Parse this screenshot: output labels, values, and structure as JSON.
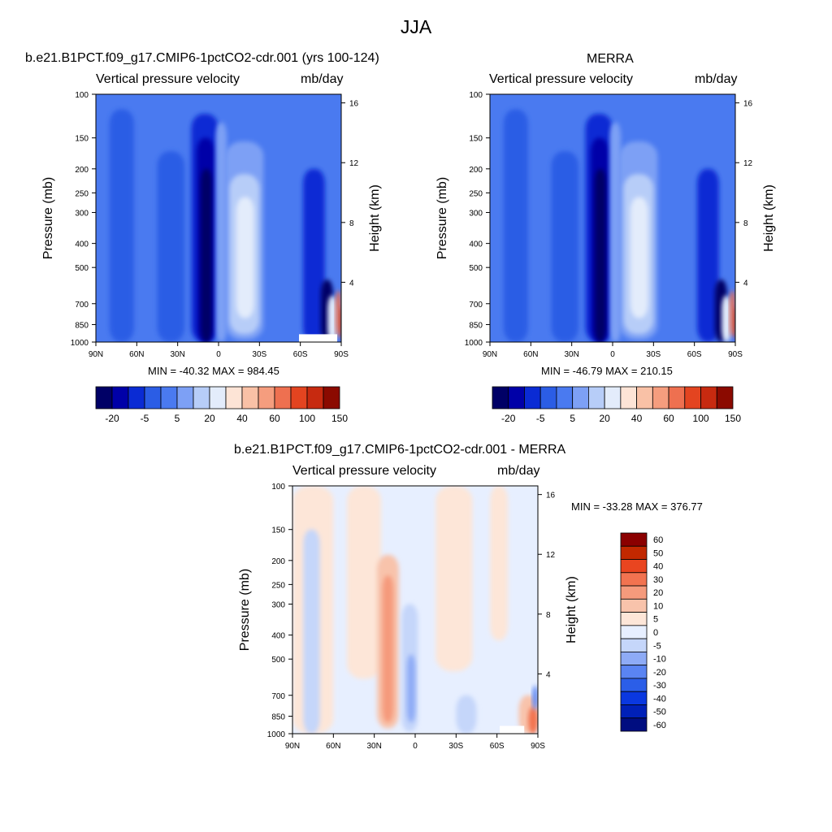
{
  "figure_title": "JJA",
  "colors": {
    "model_obs_scale": [
      "#000066",
      "#0000a8",
      "#0a2bd4",
      "#2b5de5",
      "#4a7af0",
      "#7da0f5",
      "#b7cdf8",
      "#e3ecfb",
      "#fde4d6",
      "#f9c1a6",
      "#f59d7e",
      "#ee7050",
      "#e34420",
      "#c72a10",
      "#8b0a00"
    ],
    "diff_scale": [
      "#000d80",
      "#0020b8",
      "#0a38e0",
      "#2b5ee8",
      "#5a84f2",
      "#8eabf6",
      "#c5d6fa",
      "#e7efff",
      "#fde6d8",
      "#f8c3ab",
      "#f59a7c",
      "#f27350",
      "#e94520",
      "#c22800",
      "#8b0000"
    ]
  },
  "chart_data": [
    {
      "id": "model",
      "type": "contour",
      "title": "b.e21.B1PCT.f09_g17.CMIP6-1pctCO2-cdr.001 (yrs 100-124)",
      "left_label": "Vertical pressure velocity",
      "right_label": "mb/day",
      "ylabel": "Pressure (mb)",
      "y2label": "Height (km)",
      "x_ticks": [
        "90N",
        "60N",
        "30N",
        "0",
        "30S",
        "60S",
        "90S"
      ],
      "x_values": [
        90,
        60,
        30,
        0,
        -30,
        -60,
        -90
      ],
      "y_ticks": [
        "100",
        "150",
        "200",
        "250",
        "300",
        "400",
        "500",
        "700",
        "850",
        "1000"
      ],
      "y_values": [
        100,
        150,
        200,
        250,
        300,
        400,
        500,
        700,
        850,
        1000
      ],
      "y2_ticks": [
        "16",
        "12",
        "8",
        "4"
      ],
      "y2_values": [
        16,
        12,
        8,
        4
      ],
      "min_max": "MIN = -40.32  MAX = 984.45",
      "colorbar_labels": [
        "-20",
        "-5",
        "5",
        "20",
        "40",
        "60",
        "100",
        "150"
      ]
    },
    {
      "id": "obs",
      "type": "contour",
      "title": "MERRA",
      "left_label": "Vertical pressure velocity",
      "right_label": "mb/day",
      "ylabel": "Pressure (mb)",
      "y2label": "Height (km)",
      "x_ticks": [
        "90N",
        "60N",
        "30N",
        "0",
        "30S",
        "60S",
        "90S"
      ],
      "x_values": [
        90,
        60,
        30,
        0,
        -30,
        -60,
        -90
      ],
      "y_ticks": [
        "100",
        "150",
        "200",
        "250",
        "300",
        "400",
        "500",
        "700",
        "850",
        "1000"
      ],
      "y_values": [
        100,
        150,
        200,
        250,
        300,
        400,
        500,
        700,
        850,
        1000
      ],
      "y2_ticks": [
        "16",
        "12",
        "8",
        "4"
      ],
      "y2_values": [
        16,
        12,
        8,
        4
      ],
      "min_max": "MIN = -46.79  MAX = 210.15",
      "colorbar_labels": [
        "-20",
        "-5",
        "5",
        "20",
        "40",
        "60",
        "100",
        "150"
      ]
    },
    {
      "id": "diff",
      "type": "contour",
      "title": "b.e21.B1PCT.f09_g17.CMIP6-1pctCO2-cdr.001 - MERRA",
      "left_label": "Vertical pressure velocity",
      "right_label": "mb/day",
      "ylabel": "Pressure (mb)",
      "y2label": "Height (km)",
      "x_ticks": [
        "90N",
        "60N",
        "30N",
        "0",
        "30S",
        "60S",
        "90S"
      ],
      "x_values": [
        90,
        60,
        30,
        0,
        -30,
        -60,
        -90
      ],
      "y_ticks": [
        "100",
        "150",
        "200",
        "250",
        "300",
        "400",
        "500",
        "700",
        "850",
        "1000"
      ],
      "y_values": [
        100,
        150,
        200,
        250,
        300,
        400,
        500,
        700,
        850,
        1000
      ],
      "y2_ticks": [
        "16",
        "12",
        "8",
        "4"
      ],
      "y2_values": [
        16,
        12,
        8,
        4
      ],
      "min_max": "MIN = -33.28  MAX = 376.77",
      "colorbar_labels": [
        "60",
        "50",
        "40",
        "30",
        "20",
        "10",
        "5",
        "0",
        "-5",
        "-10",
        "-20",
        "-30",
        "-40",
        "-50",
        "-60"
      ]
    }
  ]
}
